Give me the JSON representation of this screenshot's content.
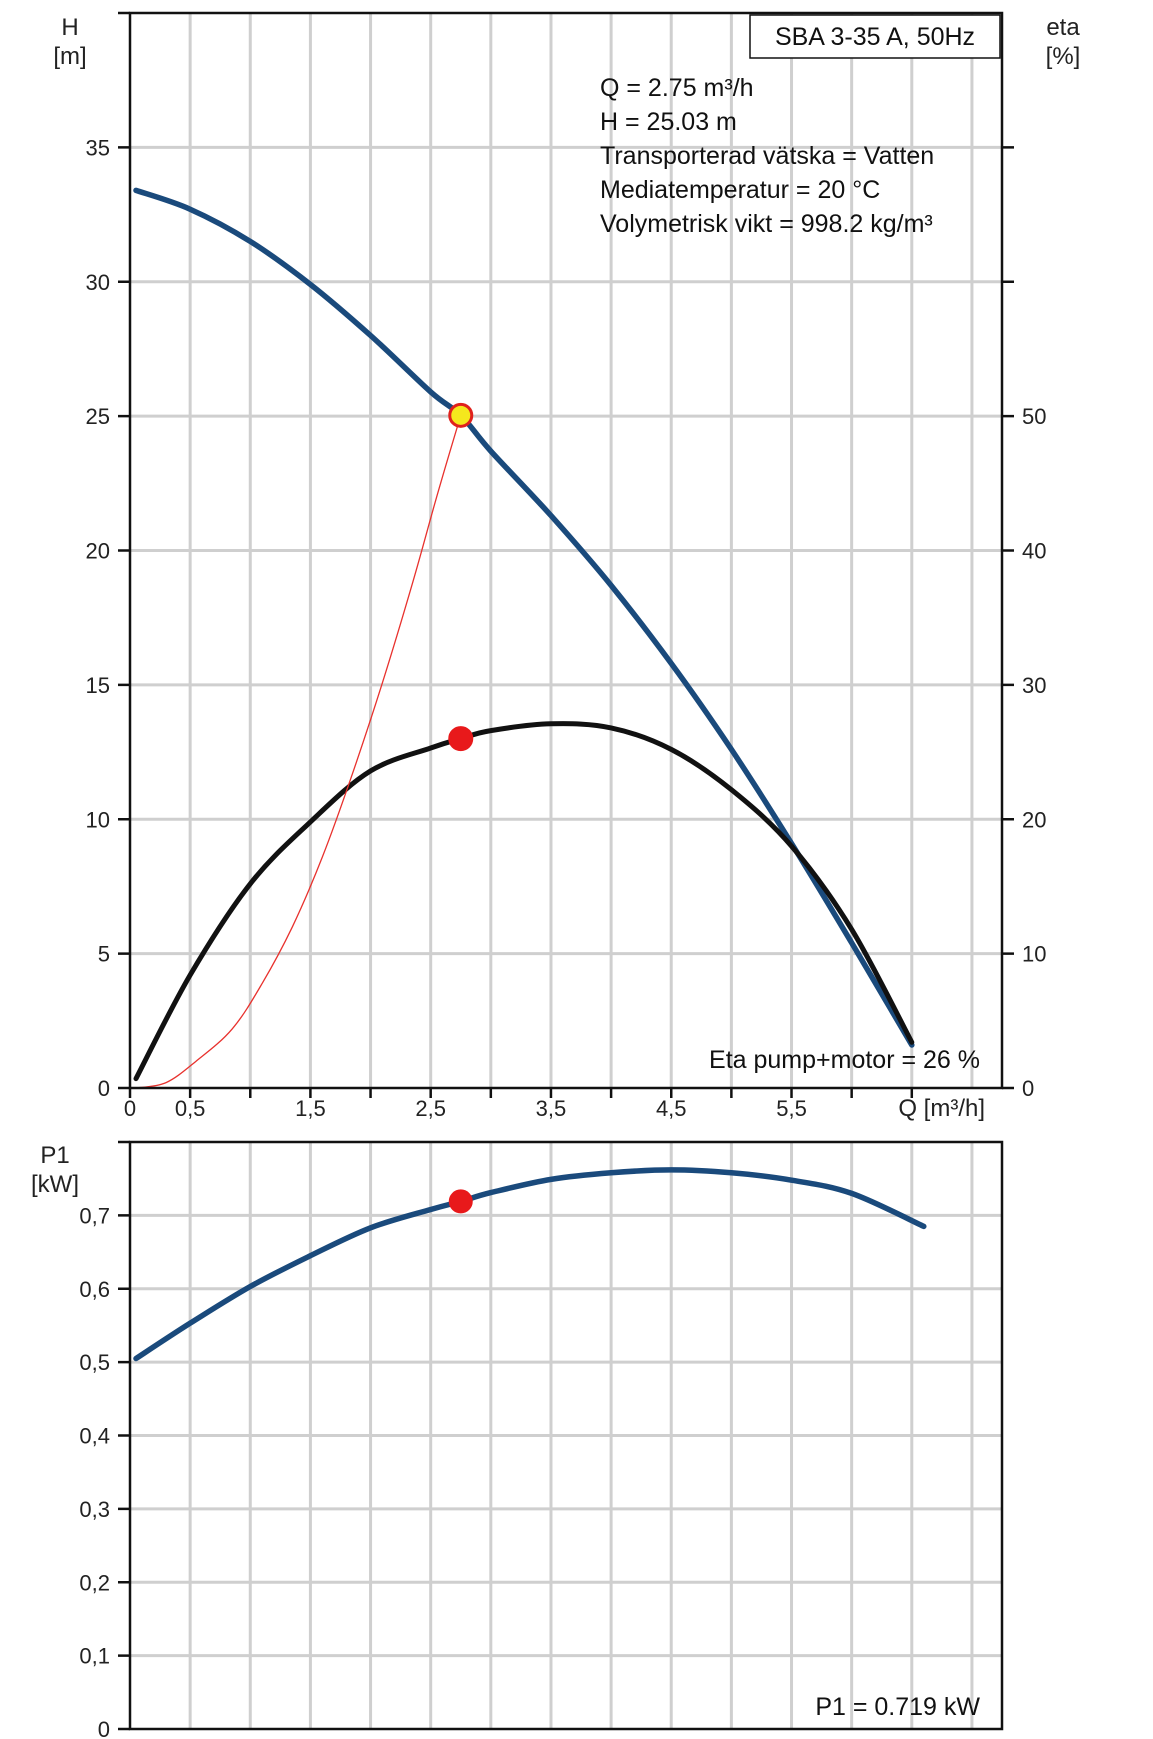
{
  "chart_data": [
    {
      "type": "line",
      "title": "SBA 3-35 A, 50Hz",
      "xlabel": "Q [m³/h]",
      "ylabel_left": [
        "H",
        "[m]"
      ],
      "ylabel_right": [
        "eta",
        "[%]"
      ],
      "xlim": [
        0,
        7.25
      ],
      "ylim_left": [
        0,
        40
      ],
      "ylim_right": [
        0,
        80
      ],
      "x_ticks": [
        "0",
        "0,5",
        "1,5",
        "2,5",
        "3,5",
        "4,5",
        "5,5"
      ],
      "y_ticks_left": [
        "0",
        "5",
        "10",
        "15",
        "20",
        "25",
        "30",
        "35"
      ],
      "y_ticks_right": [
        "0",
        "10",
        "20",
        "30",
        "40",
        "50"
      ],
      "grid": true,
      "info_lines": [
        "Q = 2.75 m³/h",
        "H = 25.03 m",
        "Transporterad vätska = Vatten",
        "Mediatemperatur = 20 °C",
        "Volymetrisk vikt = 998.2 kg/m³"
      ],
      "footer_note": "Eta pump+motor = 26 %",
      "series": [
        {
          "axis": "left",
          "color": "#1a4a7c",
          "x": [
            0.05,
            0.5,
            1.0,
            1.5,
            2.0,
            2.5,
            2.75,
            3.0,
            3.5,
            4.0,
            4.5,
            5.0,
            5.5,
            6.0,
            6.5
          ],
          "y": [
            33.4,
            32.7,
            31.5,
            29.9,
            28.0,
            25.9,
            25.03,
            23.7,
            21.3,
            18.7,
            15.8,
            12.6,
            9.1,
            5.4,
            1.6
          ]
        },
        {
          "axis": "right",
          "color": "#111111",
          "x": [
            0.05,
            0.5,
            1.0,
            1.5,
            2.0,
            2.5,
            2.75,
            3.0,
            3.5,
            4.0,
            4.5,
            5.0,
            5.5,
            6.0,
            6.5
          ],
          "y": [
            0.7,
            8.4,
            15.2,
            19.8,
            23.6,
            25.3,
            26,
            26.6,
            27.1,
            26.8,
            25.2,
            22.2,
            18.0,
            11.8,
            3.4
          ]
        },
        {
          "axis": "left",
          "color": "#e8312d",
          "x": [
            0.05,
            0.3,
            0.55,
            0.85,
            1.1,
            1.35,
            1.6,
            1.85,
            2.1,
            2.35,
            2.55,
            2.75
          ],
          "y": [
            0.0,
            0.2,
            1.0,
            2.2,
            3.9,
            6.0,
            8.6,
            11.7,
            15.1,
            18.8,
            22.0,
            25.03
          ]
        }
      ],
      "markers": [
        {
          "x": 2.75,
          "y": 25.03,
          "axis": "left",
          "fill": "#f5e71d",
          "stroke": "#e0211c"
        },
        {
          "x": 2.75,
          "y": 26,
          "axis": "right",
          "fill": "#e8191b",
          "stroke": "#e8191b"
        }
      ]
    },
    {
      "type": "line",
      "xlim": [
        0,
        7.25
      ],
      "ylim": [
        0,
        0.8
      ],
      "ylabel": [
        "P1",
        "[kW]"
      ],
      "y_ticks": [
        "0",
        "0,1",
        "0,2",
        "0,3",
        "0,4",
        "0,5",
        "0,6",
        "0,7"
      ],
      "grid": true,
      "footer_note": "P1 = 0.719 kW",
      "series": [
        {
          "color": "#1a4a7c",
          "x": [
            0.05,
            0.5,
            1.0,
            1.5,
            2.0,
            2.5,
            2.75,
            3.0,
            3.5,
            4.0,
            4.5,
            5.0,
            5.5,
            6.0,
            6.6
          ],
          "y": [
            0.505,
            0.553,
            0.603,
            0.645,
            0.683,
            0.708,
            0.719,
            0.731,
            0.749,
            0.758,
            0.762,
            0.758,
            0.748,
            0.73,
            0.685
          ]
        }
      ],
      "markers": [
        {
          "x": 2.75,
          "y": 0.719,
          "fill": "#e8191b",
          "stroke": "#e8191b"
        }
      ]
    }
  ]
}
